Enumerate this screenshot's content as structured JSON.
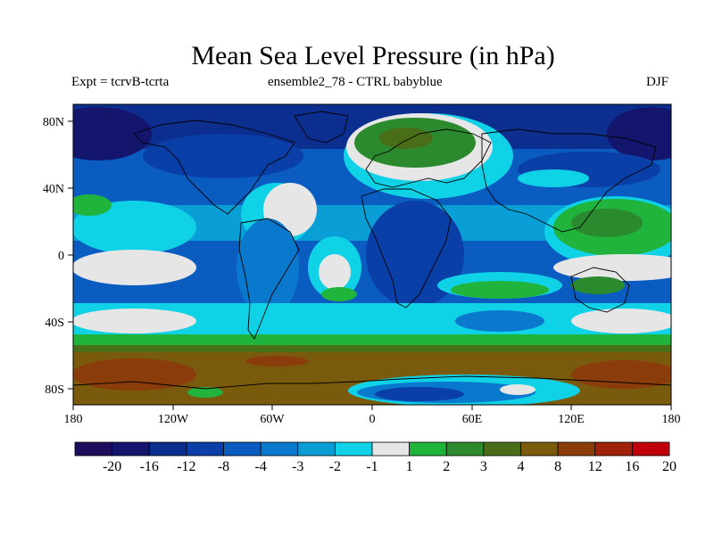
{
  "title": "Mean Sea Level Pressure (in hPa)",
  "subtitle_left": "Expt = tcrvB-tcrta",
  "subtitle_center": "ensemble2_78 - CTRL babyblue",
  "subtitle_right": "DJF",
  "map": {
    "lon_ticks": [
      "180",
      "120W",
      "60W",
      "0",
      "60E",
      "120E",
      "180"
    ],
    "lat_ticks": [
      "80N",
      "40N",
      "0",
      "40S",
      "80S"
    ]
  },
  "colorbar": {
    "colors": [
      "#1e0d5c",
      "#14166e",
      "#0c2e8e",
      "#0a3fa8",
      "#0a5cc0",
      "#0a78cc",
      "#0a9ed6",
      "#10d2e6",
      "#e6e6e6",
      "#20b43c",
      "#2b8a2e",
      "#4a6e18",
      "#7a5a0c",
      "#8a3c0a",
      "#a0220a",
      "#c0000a"
    ],
    "labels": [
      "-20",
      "-16",
      "-12",
      "-8",
      "-4",
      "-3",
      "-2",
      "-1",
      "1",
      "2",
      "3",
      "4",
      "8",
      "12",
      "16",
      "20"
    ]
  },
  "chart_data": {
    "type": "heatmap",
    "title": "Mean Sea Level Pressure (in hPa)",
    "levels": [
      -20,
      -16,
      -12,
      -8,
      -4,
      -3,
      -2,
      -1,
      1,
      2,
      3,
      4,
      8,
      12,
      16,
      20
    ],
    "lon_range": [
      -180,
      180
    ],
    "lat_range": [
      -90,
      90
    ]
  }
}
